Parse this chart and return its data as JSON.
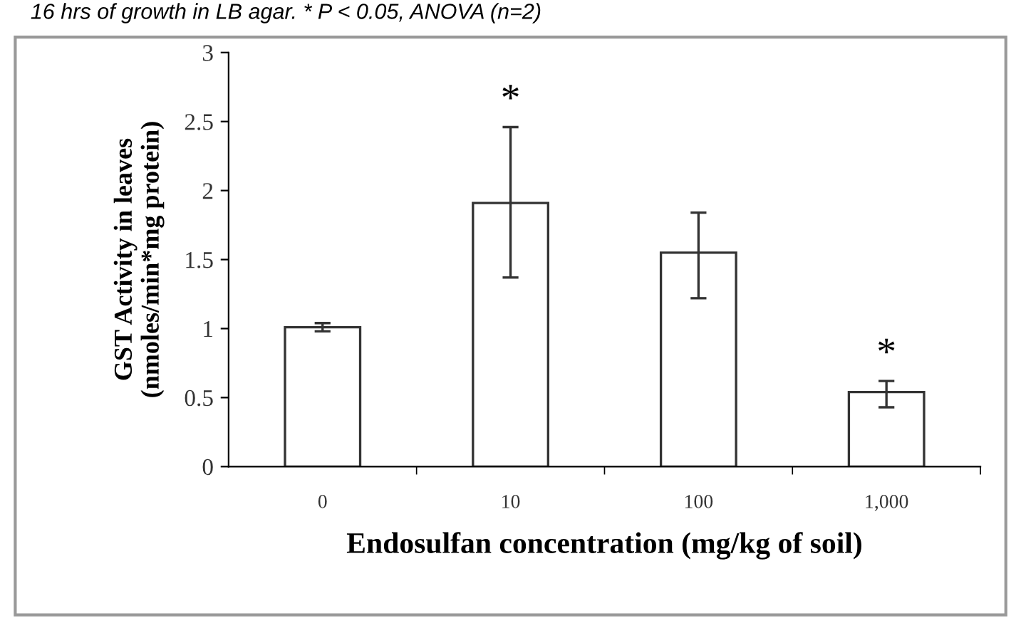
{
  "chart_data": {
    "type": "bar",
    "xlabel": "Endosulfan concentration (mg/kg of soil)",
    "ylabel": "GST Activity in leaves\n(nmoles/min*mg protein)",
    "categories": [
      "0",
      "10",
      "100",
      "1,000"
    ],
    "values": [
      1.01,
      1.91,
      1.55,
      0.54
    ],
    "errors": [
      0.03,
      [
        1.37,
        2.46
      ],
      [
        1.22,
        1.84
      ],
      [
        0.43,
        0.62
      ]
    ],
    "color": "#ffffff",
    "ylim": [
      0,
      3
    ],
    "yticks": [
      0,
      0.5,
      1,
      1.5,
      2,
      2.5,
      3
    ],
    "grid": false,
    "annotations": [
      "16 hrs of growth in LB agar. * P < 0.05, ANOVA (n=2)",
      {
        "text": "*",
        "x": "10",
        "y": 2.46
      },
      {
        "text": "*",
        "x": "1,000",
        "y": 0.62
      }
    ]
  }
}
